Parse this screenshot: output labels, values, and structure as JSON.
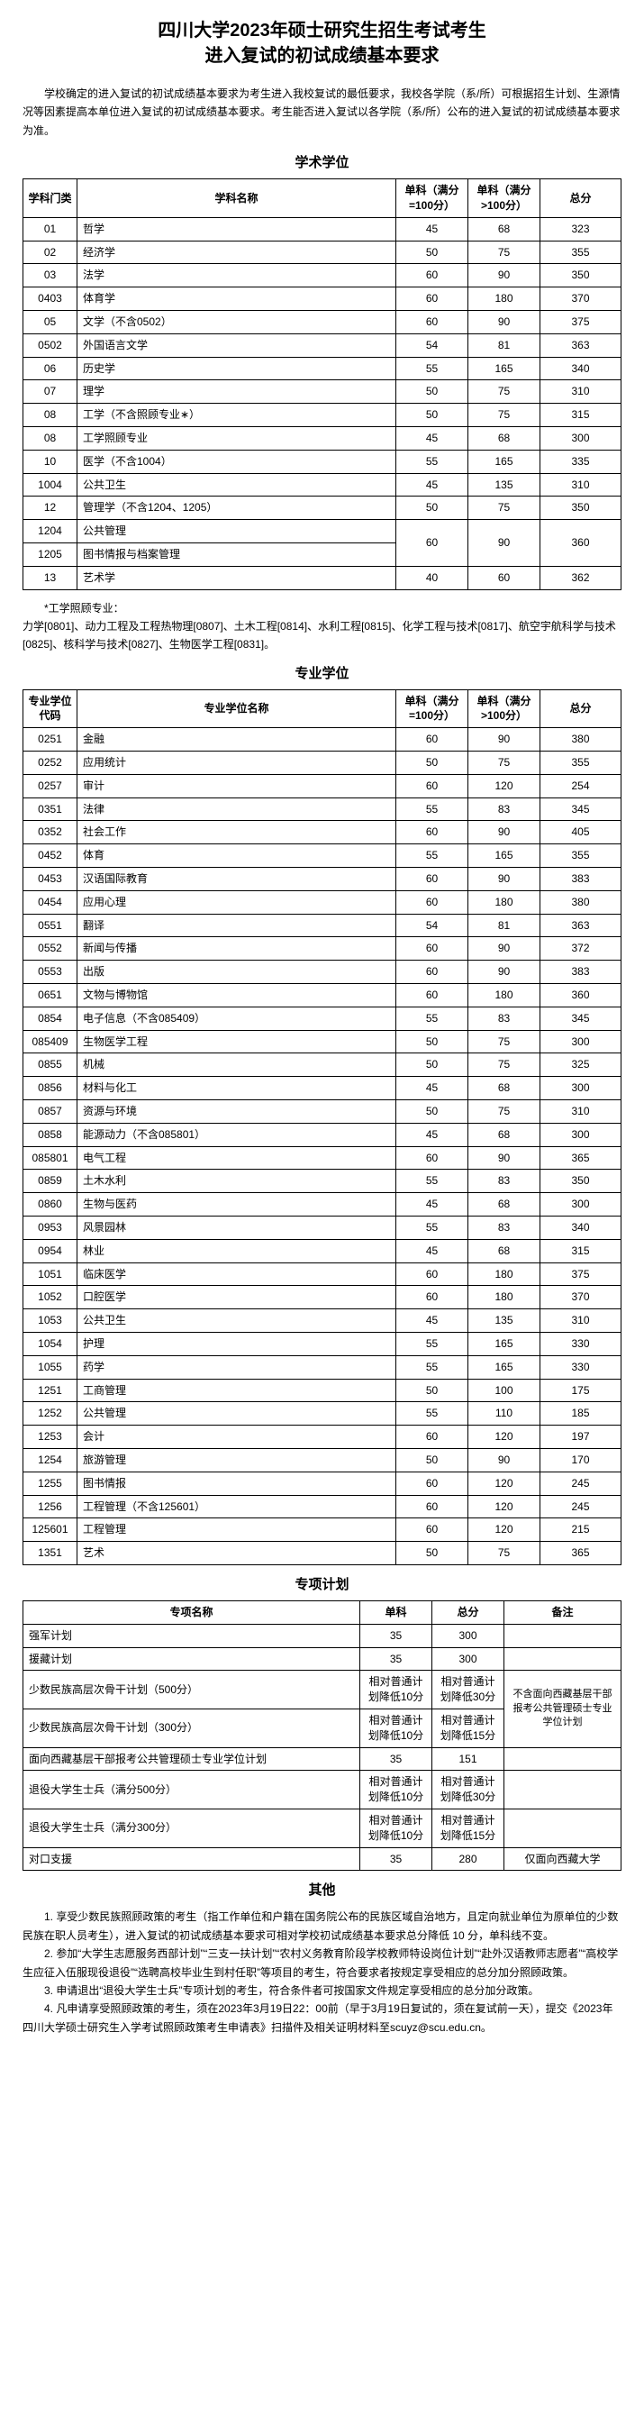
{
  "title_l1": "四川大学2023年硕士研究生招生考试考生",
  "title_l2": "进入复试的初试成绩基本要求",
  "intro": "学校确定的进入复试的初试成绩基本要求为考生进入我校复试的最低要求，我校各学院（系/所）可根据招生计划、生源情况等因素提高本单位进入复试的初试成绩基本要求。考生能否进入复试以各学院（系/所）公布的进入复试的初试成绩基本要求为准。",
  "sec1_title": "学术学位",
  "t1_h": {
    "c1": "学科门类",
    "c2": "学科名称",
    "c3": "单科（满分=100分）",
    "c4": "单科（满分>100分）",
    "c5": "总分"
  },
  "t1": [
    {
      "a": "01",
      "b": "哲学",
      "c": "45",
      "d": "68",
      "e": "323"
    },
    {
      "a": "02",
      "b": "经济学",
      "c": "50",
      "d": "75",
      "e": "355"
    },
    {
      "a": "03",
      "b": "法学",
      "c": "60",
      "d": "90",
      "e": "350"
    },
    {
      "a": "0403",
      "b": "体育学",
      "c": "60",
      "d": "180",
      "e": "370"
    },
    {
      "a": "05",
      "b": "文学（不含0502）",
      "c": "60",
      "d": "90",
      "e": "375"
    },
    {
      "a": "0502",
      "b": "外国语言文学",
      "c": "54",
      "d": "81",
      "e": "363"
    },
    {
      "a": "06",
      "b": "历史学",
      "c": "55",
      "d": "165",
      "e": "340"
    },
    {
      "a": "07",
      "b": "理学",
      "c": "50",
      "d": "75",
      "e": "310"
    },
    {
      "a": "08",
      "b": "工学（不含照顾专业∗）",
      "c": "50",
      "d": "75",
      "e": "315"
    },
    {
      "a": "08",
      "b": "工学照顾专业",
      "c": "45",
      "d": "68",
      "e": "300"
    },
    {
      "a": "10",
      "b": "医学（不含1004）",
      "c": "55",
      "d": "165",
      "e": "335"
    },
    {
      "a": "1004",
      "b": "公共卫生",
      "c": "45",
      "d": "135",
      "e": "310"
    }
  ],
  "t1_mg": [
    {
      "a": "12",
      "b": "管理学（不含1204、1205）",
      "c": "50",
      "d": "75",
      "e": "350"
    },
    {
      "a": "1204",
      "b": "公共管理"
    },
    {
      "a": "1205",
      "b": "图书情报与档案管理",
      "c": "60",
      "d": "90",
      "e": "360"
    },
    {
      "a": "13",
      "b": "艺术学",
      "c": "40",
      "d": "60",
      "e": "362"
    }
  ],
  "footnote_title": "*工学照顾专业：",
  "footnote_body": "力学[0801]、动力工程及工程热物理[0807]、土木工程[0814]、水利工程[0815]、化学工程与技术[0817]、航空宇航科学与技术[0825]、核科学与技术[0827]、生物医学工程[0831]。",
  "sec2_title": "专业学位",
  "t2_h": {
    "c1": "专业学位代码",
    "c2": "专业学位名称",
    "c3": "单科（满分=100分）",
    "c4": "单科（满分>100分）",
    "c5": "总分"
  },
  "t2": [
    {
      "a": "0251",
      "b": "金融",
      "c": "60",
      "d": "90",
      "e": "380"
    },
    {
      "a": "0252",
      "b": "应用统计",
      "c": "50",
      "d": "75",
      "e": "355"
    },
    {
      "a": "0257",
      "b": "审计",
      "c": "60",
      "d": "120",
      "e": "254"
    },
    {
      "a": "0351",
      "b": "法律",
      "c": "55",
      "d": "83",
      "e": "345"
    },
    {
      "a": "0352",
      "b": "社会工作",
      "c": "60",
      "d": "90",
      "e": "405"
    },
    {
      "a": "0452",
      "b": "体育",
      "c": "55",
      "d": "165",
      "e": "355"
    },
    {
      "a": "0453",
      "b": "汉语国际教育",
      "c": "60",
      "d": "90",
      "e": "383"
    },
    {
      "a": "0454",
      "b": "应用心理",
      "c": "60",
      "d": "180",
      "e": "380"
    },
    {
      "a": "0551",
      "b": "翻译",
      "c": "54",
      "d": "81",
      "e": "363"
    },
    {
      "a": "0552",
      "b": "新闻与传播",
      "c": "60",
      "d": "90",
      "e": "372"
    },
    {
      "a": "0553",
      "b": "出版",
      "c": "60",
      "d": "90",
      "e": "383"
    },
    {
      "a": "0651",
      "b": "文物与博物馆",
      "c": "60",
      "d": "180",
      "e": "360"
    },
    {
      "a": "0854",
      "b": "电子信息（不含085409）",
      "c": "55",
      "d": "83",
      "e": "345"
    },
    {
      "a": "085409",
      "b": "生物医学工程",
      "c": "50",
      "d": "75",
      "e": "300"
    },
    {
      "a": "0855",
      "b": "机械",
      "c": "50",
      "d": "75",
      "e": "325"
    },
    {
      "a": "0856",
      "b": "材料与化工",
      "c": "45",
      "d": "68",
      "e": "300"
    },
    {
      "a": "0857",
      "b": "资源与环境",
      "c": "50",
      "d": "75",
      "e": "310"
    },
    {
      "a": "0858",
      "b": "能源动力（不含085801）",
      "c": "45",
      "d": "68",
      "e": "300"
    },
    {
      "a": "085801",
      "b": "电气工程",
      "c": "60",
      "d": "90",
      "e": "365"
    },
    {
      "a": "0859",
      "b": "土木水利",
      "c": "55",
      "d": "83",
      "e": "350"
    },
    {
      "a": "0860",
      "b": "生物与医药",
      "c": "45",
      "d": "68",
      "e": "300"
    },
    {
      "a": "0953",
      "b": "风景园林",
      "c": "55",
      "d": "83",
      "e": "340"
    },
    {
      "a": "0954",
      "b": "林业",
      "c": "45",
      "d": "68",
      "e": "315"
    },
    {
      "a": "1051",
      "b": "临床医学",
      "c": "60",
      "d": "180",
      "e": "375"
    },
    {
      "a": "1052",
      "b": "口腔医学",
      "c": "60",
      "d": "180",
      "e": "370"
    },
    {
      "a": "1053",
      "b": "公共卫生",
      "c": "45",
      "d": "135",
      "e": "310"
    },
    {
      "a": "1054",
      "b": "护理",
      "c": "55",
      "d": "165",
      "e": "330"
    },
    {
      "a": "1055",
      "b": "药学",
      "c": "55",
      "d": "165",
      "e": "330"
    },
    {
      "a": "1251",
      "b": "工商管理",
      "c": "50",
      "d": "100",
      "e": "175"
    },
    {
      "a": "1252",
      "b": "公共管理",
      "c": "55",
      "d": "110",
      "e": "185"
    },
    {
      "a": "1253",
      "b": "会计",
      "c": "60",
      "d": "120",
      "e": "197"
    },
    {
      "a": "1254",
      "b": "旅游管理",
      "c": "50",
      "d": "90",
      "e": "170"
    },
    {
      "a": "1255",
      "b": "图书情报",
      "c": "60",
      "d": "120",
      "e": "245"
    },
    {
      "a": "1256",
      "b": "工程管理（不含125601）",
      "c": "60",
      "d": "120",
      "e": "245"
    },
    {
      "a": "125601",
      "b": "工程管理",
      "c": "60",
      "d": "120",
      "e": "215"
    },
    {
      "a": "1351",
      "b": "艺术",
      "c": "50",
      "d": "75",
      "e": "365"
    }
  ],
  "sec3_title": "专项计划",
  "t3_h": {
    "c1": "专项名称",
    "c2": "单科",
    "c3": "总分",
    "c4": "备注"
  },
  "t3_remark_merged": "不含面向西藏基层干部报考公共管理硕士专业学位计划",
  "t3": [
    {
      "a": "强军计划",
      "b": "35",
      "c": "300",
      "d": ""
    },
    {
      "a": "援藏计划",
      "b": "35",
      "c": "300",
      "d": ""
    },
    {
      "a": "少数民族高层次骨干计划（500分）",
      "b": "相对普通计划降低10分",
      "c": "相对普通计划降低30分"
    },
    {
      "a": "少数民族高层次骨干计划（300分）",
      "b": "相对普通计划降低10分",
      "c": "相对普通计划降低15分"
    },
    {
      "a": "面向西藏基层干部报考公共管理硕士专业学位计划",
      "b": "35",
      "c": "151",
      "d": ""
    },
    {
      "a": "退役大学生士兵（满分500分）",
      "b": "相对普通计划降低10分",
      "c": "相对普通计划降低30分",
      "d": ""
    },
    {
      "a": "退役大学生士兵（满分300分）",
      "b": "相对普通计划降低10分",
      "c": "相对普通计划降低15分",
      "d": ""
    },
    {
      "a": "对口支援",
      "b": "35",
      "c": "280",
      "d": "仅面向西藏大学"
    }
  ],
  "sec4_title": "其他",
  "other": [
    "1. 享受少数民族照顾政策的考生（指工作单位和户籍在国务院公布的民族区域自治地方，且定向就业单位为原单位的少数民族在职人员考生），进入复试的初试成绩基本要求可相对学校初试成绩基本要求总分降低 10 分，单科线不变。",
    "2. 参加“大学生志愿服务西部计划”“三支一扶计划”“农村义务教育阶段学校教师特设岗位计划”“赴外汉语教师志愿者”“高校学生应征入伍服现役退役”“选聘高校毕业生到村任职”等项目的考生，符合要求者按规定享受相应的总分加分照顾政策。",
    "3. 申请退出“退役大学生士兵”专项计划的考生，符合条件者可按国家文件规定享受相应的总分加分政策。",
    "4. 凡申请享受照顾政策的考生，须在2023年3月19日22：00前（早于3月19日复试的，须在复试前一天），提交《2023年四川大学硕士研究生入学考试照顾政策考生申请表》扫描件及相关证明材料至scuyz@scu.edu.cn。"
  ]
}
